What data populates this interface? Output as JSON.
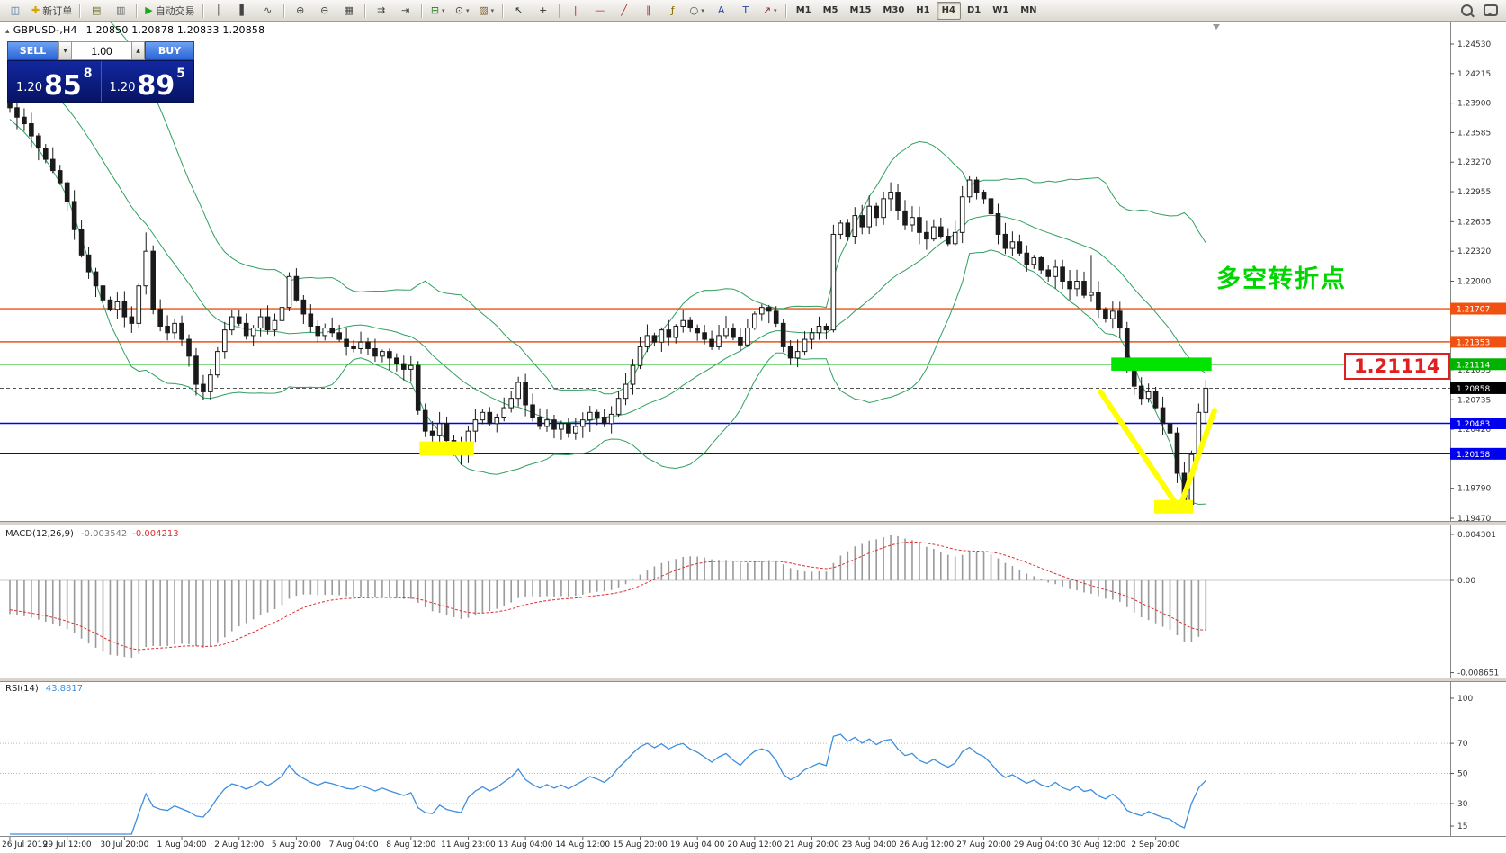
{
  "toolbar": {
    "items": [
      {
        "name": "app-icon",
        "glyph": "◫",
        "color": "#4a6f9a"
      },
      {
        "name": "new-order-button",
        "glyph": "✚",
        "color": "#d4a400",
        "label": "新订单"
      },
      {
        "name": "separator"
      },
      {
        "name": "charts-window-icon",
        "glyph": "▤",
        "color": "#6b6b2a"
      },
      {
        "name": "profiles-icon",
        "glyph": "▥",
        "color": "#666666"
      },
      {
        "name": "separator"
      },
      {
        "name": "autotrading-button",
        "glyph": "▶",
        "color": "#18a818",
        "label": "自动交易"
      },
      {
        "name": "separator"
      },
      {
        "name": "bar-chart-icon",
        "glyph": "║",
        "color": "#444444"
      },
      {
        "name": "candlestick-chart-icon",
        "glyph": "▌",
        "color": "#444444"
      },
      {
        "name": "line-chart-icon",
        "glyph": "∿",
        "color": "#444444"
      },
      {
        "name": "separator"
      },
      {
        "name": "zoom-in-icon",
        "glyph": "⊕",
        "color": "#444444"
      },
      {
        "name": "zoom-out-icon",
        "glyph": "⊖",
        "color": "#444444"
      },
      {
        "name": "tile-windows-icon",
        "glyph": "▦",
        "color": "#444444"
      },
      {
        "name": "separator"
      },
      {
        "name": "auto-scroll-icon",
        "glyph": "⇉",
        "color": "#444444"
      },
      {
        "name": "chart-shift-icon",
        "glyph": "⇥",
        "color": "#444444"
      },
      {
        "name": "separator"
      },
      {
        "name": "new-chart-button",
        "glyph": "⊞",
        "color": "#2a7a2a",
        "caret": true
      },
      {
        "name": "periods-button",
        "glyph": "⊙",
        "color": "#444444",
        "caret": true
      },
      {
        "name": "templates-button",
        "glyph": "▨",
        "color": "#7a5a2a",
        "caret": true
      },
      {
        "name": "separator"
      },
      {
        "name": "cursor-icon",
        "glyph": "↖",
        "color": "#333333"
      },
      {
        "name": "crosshair-icon",
        "glyph": "+",
        "color": "#333333"
      },
      {
        "name": "separator"
      },
      {
        "name": "vertical-line-icon",
        "glyph": "|",
        "color": "#b03030"
      },
      {
        "name": "horizontal-line-icon",
        "glyph": "—",
        "color": "#b03030"
      },
      {
        "name": "trendline-icon",
        "glyph": "╱",
        "color": "#b03030"
      },
      {
        "name": "channel-icon",
        "glyph": "∥",
        "color": "#b03030"
      },
      {
        "name": "fibonacci-icon",
        "glyph": "ƒ",
        "color": "#8a6a00"
      },
      {
        "name": "shapes-icon",
        "glyph": "○",
        "color": "#444444",
        "caret": true
      },
      {
        "name": "text-icon",
        "glyph": "A",
        "color": "#2a4a9a"
      },
      {
        "name": "label-icon",
        "glyph": "T",
        "color": "#2a4a9a"
      },
      {
        "name": "arrows-icon",
        "glyph": "↗",
        "color": "#9a2a2a",
        "caret": true
      },
      {
        "name": "separator"
      }
    ]
  },
  "timeframes": {
    "items": [
      "M1",
      "M5",
      "M15",
      "M30",
      "H1",
      "H4",
      "D1",
      "W1",
      "MN"
    ],
    "active": "H4"
  },
  "quote": {
    "toggle": "▴",
    "symbol": "GBPUSD-,H4",
    "ohlc": "1.20850 1.20878 1.20833 1.20858"
  },
  "trade_panel": {
    "sell_label": "SELL",
    "buy_label": "BUY",
    "volume": "1.00",
    "volume_down_glyph": "▼",
    "volume_up_glyph": "▲",
    "sell_price": {
      "base": "1.20",
      "big": "85",
      "pips": "8"
    },
    "buy_price": {
      "base": "1.20",
      "big": "89",
      "pips": "5"
    }
  },
  "chart": {
    "symbol": "GBPUSD",
    "period": "H4",
    "price_ticks": [
      "1.24530",
      "1.24215",
      "1.23900",
      "1.23585",
      "1.23270",
      "1.22955",
      "1.22635",
      "1.22320",
      "1.22000",
      "1.21055",
      "1.20735",
      "1.20420",
      "1.19790",
      "1.19470"
    ],
    "hlines": [
      {
        "name": "resistance-line-1",
        "label": "1.21707",
        "price": 1.21707,
        "color": "#f05010"
      },
      {
        "name": "resistance-line-2",
        "label": "1.21353",
        "price": 1.21353,
        "color": "#f05010"
      },
      {
        "name": "pivot-line",
        "label": "1.21114",
        "price": 1.21114,
        "color": "#00b300"
      },
      {
        "name": "support-line-1",
        "label": "1.20483",
        "price": 1.20483,
        "color": "#0000ee"
      },
      {
        "name": "support-line-2",
        "label": "1.20158",
        "price": 1.20158,
        "color": "#0000ee"
      }
    ],
    "current_price": {
      "value": 1.20858,
      "label": "1.20858",
      "color": "#000000"
    },
    "first_open": 1.2392,
    "closes": [
      1.2385,
      1.2375,
      1.2368,
      1.2355,
      1.2342,
      1.233,
      1.2318,
      1.2305,
      1.2285,
      1.2255,
      1.2228,
      1.221,
      1.2195,
      1.218,
      1.217,
      1.2178,
      1.2162,
      1.2155,
      1.2195,
      1.2232,
      1.217,
      1.2152,
      1.2145,
      1.2155,
      1.2138,
      1.212,
      1.209,
      1.2082,
      1.21,
      1.2125,
      1.2148,
      1.2162,
      1.2155,
      1.2142,
      1.215,
      1.2162,
      1.2148,
      1.2158,
      1.2172,
      1.2205,
      1.218,
      1.2165,
      1.2152,
      1.2142,
      1.215,
      1.2145,
      1.2138,
      1.213,
      1.2128,
      1.2135,
      1.2128,
      1.212,
      1.2125,
      1.2118,
      1.2112,
      1.2106,
      1.211,
      1.2062,
      1.204,
      1.2035,
      1.2048,
      1.203,
      1.2022,
      1.2016,
      1.204,
      1.2052,
      1.206,
      1.2048,
      1.2055,
      1.2065,
      1.2075,
      1.2092,
      1.2068,
      1.2055,
      1.2045,
      1.2052,
      1.2042,
      1.2048,
      1.2038,
      1.2045,
      1.2052,
      1.206,
      1.2055,
      1.2048,
      1.2058,
      1.2075,
      1.209,
      1.211,
      1.213,
      1.2142,
      1.2135,
      1.2148,
      1.214,
      1.2152,
      1.2158,
      1.215,
      1.2145,
      1.2138,
      1.213,
      1.2142,
      1.215,
      1.214,
      1.2132,
      1.215,
      1.2165,
      1.2172,
      1.2168,
      1.2155,
      1.213,
      1.2118,
      1.2125,
      1.2138,
      1.2145,
      1.2152,
      1.2148,
      1.225,
      1.2262,
      1.2248,
      1.227,
      1.2258,
      1.228,
      1.2268,
      1.2288,
      1.2295,
      1.2275,
      1.226,
      1.2268,
      1.2252,
      1.2245,
      1.2258,
      1.2248,
      1.224,
      1.2252,
      1.229,
      1.2308,
      1.2295,
      1.2288,
      1.2272,
      1.225,
      1.2235,
      1.2242,
      1.223,
      1.2218,
      1.2225,
      1.2212,
      1.2205,
      1.2215,
      1.22,
      1.2192,
      1.22,
      1.2185,
      1.2188,
      1.217,
      1.216,
      1.2168,
      1.215,
      1.2105,
      1.2088,
      1.2075,
      1.2082,
      1.2065,
      1.2048,
      1.2038,
      1.1995,
      1.1962,
      1.2015,
      1.206,
      1.20858
    ],
    "wick_overrides": {
      "19": {
        "high": 1.2252
      },
      "26": {
        "low": 1.2078
      },
      "63": {
        "low": 1.2004
      },
      "71": {
        "high": 1.2098
      },
      "134": {
        "high": 1.2312
      },
      "151": {
        "high": 1.2228
      },
      "164": {
        "low": 1.1958
      },
      "167": {
        "high": 1.2095
      }
    },
    "date_labels": [
      "26 Jul 2019",
      "29 Jul 12:00",
      "30 Jul 20:00",
      "1 Aug 04:00",
      "2 Aug 12:00",
      "5 Aug 20:00",
      "7 Aug 04:00",
      "8 Aug 12:00",
      "11 Aug 23:00",
      "13 Aug 04:00",
      "14 Aug 12:00",
      "15 Aug 20:00",
      "19 Aug 04:00",
      "20 Aug 12:00",
      "21 Aug 20:00",
      "23 Aug 04:00",
      "26 Aug 12:00",
      "27 Aug 20:00",
      "29 Aug 04:00",
      "30 Aug 12:00",
      "2 Sep 20:00"
    ],
    "candles_per_label": 8,
    "bollinger": {
      "period": 20,
      "deviation": 2,
      "color": "#2fa05f"
    },
    "annotation": {
      "text": "多空转折点",
      "color": "#00d500"
    },
    "callout": {
      "text": "1.21114"
    },
    "drawings": [
      {
        "name": "yellow-zone-august-low",
        "type": "rect",
        "i1": 57.2,
        "i2": 64.8,
        "p_top": 1.2029,
        "p_bot": 1.2014,
        "color": "#ffff00"
      },
      {
        "name": "green-zone-pivot",
        "type": "rect",
        "i1": 153.8,
        "i2": 167.8,
        "p_top": 1.21185,
        "p_bot": 1.21045,
        "color": "#00e400"
      },
      {
        "name": "yellow-v-left-line",
        "type": "line",
        "i1": 152.3,
        "p1": 1.2082,
        "i2": 163.3,
        "p2": 1.1957,
        "color": "#ffff00",
        "width": 6
      },
      {
        "name": "yellow-v-right-line",
        "type": "line",
        "i1": 163.3,
        "p1": 1.1957,
        "i2": 168.2,
        "p2": 1.2062,
        "color": "#ffff00",
        "width": 6
      },
      {
        "name": "yellow-zone-september-low",
        "type": "rect",
        "i1": 159.8,
        "i2": 165.2,
        "p_top": 1.19665,
        "p_bot": 1.1952,
        "color": "#ffff00"
      }
    ]
  },
  "macd": {
    "title": "MACD(12,26,9)",
    "value_main": "-0.003542",
    "value_signal": "-0.004213",
    "params": {
      "fast": 12,
      "slow": 26,
      "signal": 9
    },
    "ticks": [
      {
        "label": "0.004301",
        "value": 0.004301
      },
      {
        "label": "0.00",
        "value": 0
      },
      {
        "label": "-0.008651",
        "value": -0.008651
      }
    ],
    "colors": {
      "histogram": "#9a9a9a",
      "signal": "#d93030"
    }
  },
  "rsi": {
    "title": "RSI(14)",
    "value": "43.8817",
    "period": 14,
    "color": "#3e8ede",
    "ticks": [
      {
        "label": "100",
        "value": 100
      },
      {
        "label": "70",
        "value": 70
      },
      {
        "label": "50",
        "value": 50
      },
      {
        "label": "30",
        "value": 30
      },
      {
        "label": "15",
        "value": 15
      }
    ],
    "levels": [
      70,
      50,
      30
    ]
  }
}
